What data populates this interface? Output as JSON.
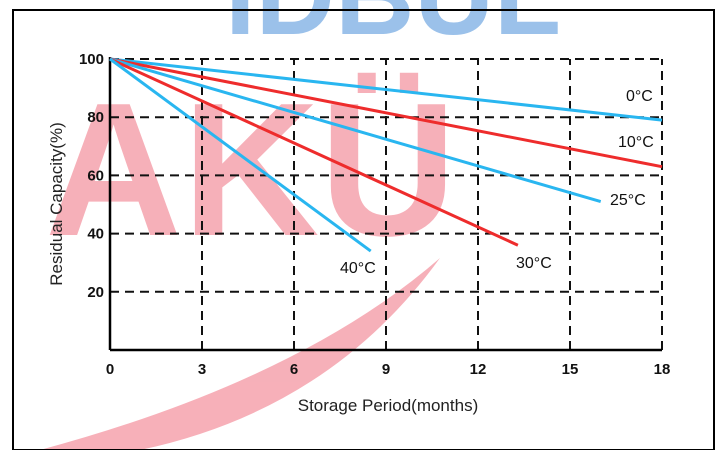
{
  "watermark": {
    "top_text": "IDBUL",
    "main_text": "AKÜ",
    "top_color": "#4a90d9",
    "main_color": "#f07080"
  },
  "chart_data": {
    "type": "line",
    "title": "",
    "xlabel": "Storage Period(months)",
    "ylabel": "Residual Capacity(%)",
    "xlim": [
      0,
      18
    ],
    "ylim": [
      0,
      100
    ],
    "xticks": [
      "0",
      "3",
      "6",
      "9",
      "12",
      "15",
      "18"
    ],
    "yticks": [
      "100",
      "80",
      "60",
      "40",
      "20"
    ],
    "grid": true,
    "grid_style": "dashed",
    "series": [
      {
        "name": "0°C",
        "color": "#29b6f0",
        "points": [
          [
            0,
            100
          ],
          [
            18,
            79
          ]
        ]
      },
      {
        "name": "10°C",
        "color": "#ee2c2c",
        "points": [
          [
            0,
            100
          ],
          [
            18,
            63
          ]
        ]
      },
      {
        "name": "25°C",
        "color": "#29b6f0",
        "points": [
          [
            0,
            100
          ],
          [
            16,
            51
          ]
        ]
      },
      {
        "name": "30°C",
        "color": "#ee2c2c",
        "points": [
          [
            0,
            100
          ],
          [
            13.3,
            36
          ]
        ]
      },
      {
        "name": "40°C",
        "color": "#29b6f0",
        "points": [
          [
            0,
            100
          ],
          [
            8.5,
            34
          ]
        ]
      }
    ]
  }
}
